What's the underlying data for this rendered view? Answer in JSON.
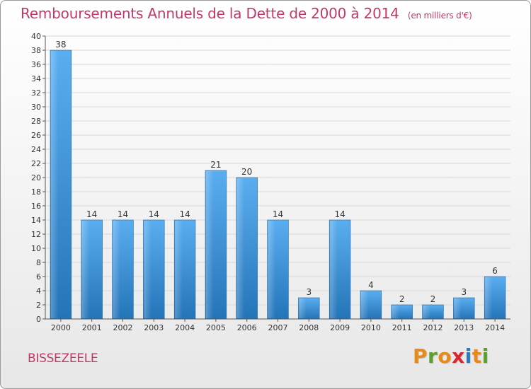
{
  "title": "Remboursements Annuels de la Dette de 2000 à 2014",
  "subtitle": "(en milliers d'€)",
  "town": "BISSEZEELE",
  "logo": {
    "letters": [
      "P",
      "r",
      "o",
      "x",
      "i",
      "t",
      "i"
    ],
    "colors": [
      "#e68a1e",
      "#5aa02c",
      "#e68a1e",
      "#d8262e",
      "#2a7ab8",
      "#e68a1e",
      "#5aa02c"
    ]
  },
  "colors": {
    "title": "#c0396a",
    "bar_light": "#5aaef0",
    "bar_dark": "#1f6fb3",
    "grid": "#d8d8d8",
    "axis": "#555555"
  },
  "chart_data": {
    "type": "bar",
    "title": "Remboursements Annuels de la Dette de 2000 à 2014",
    "subtitle": "(en milliers d'€)",
    "categories": [
      "2000",
      "2001",
      "2002",
      "2003",
      "2004",
      "2005",
      "2006",
      "2007",
      "2008",
      "2009",
      "2010",
      "2011",
      "2012",
      "2013",
      "2014"
    ],
    "values": [
      38,
      14,
      14,
      14,
      14,
      21,
      20,
      14,
      3,
      14,
      4,
      2,
      2,
      3,
      6
    ],
    "ylim": [
      0,
      40
    ],
    "yticks": [
      0,
      2,
      4,
      6,
      8,
      10,
      12,
      14,
      16,
      18,
      20,
      22,
      24,
      26,
      28,
      30,
      32,
      34,
      36,
      38,
      40
    ],
    "grid": true,
    "xlabel": "",
    "ylabel": ""
  }
}
